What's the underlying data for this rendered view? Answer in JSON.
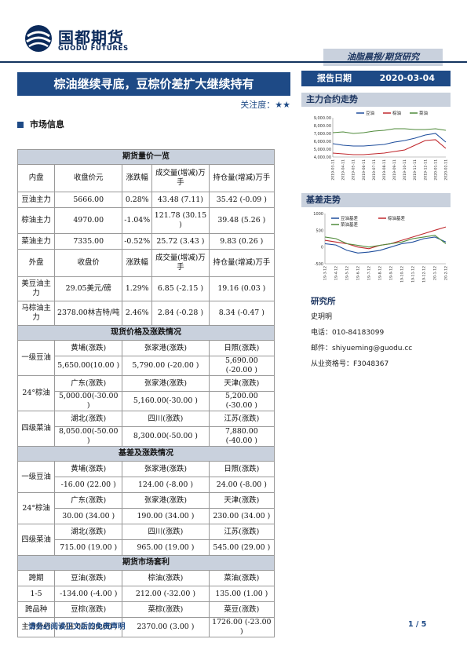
{
  "header": {
    "logo_cn": "国都期货",
    "logo_en": "GUODU FUTURES",
    "tag": "油脂晨报/期货研究",
    "title": "棕油继续寻底，豆棕价差扩大继续持有",
    "attention_label": "关注度：",
    "attention_stars": "★★",
    "section": "市场信息",
    "report_date_label": "报告日期",
    "report_date": "2020-03-04"
  },
  "colors": {
    "brand": "#1e4a86",
    "band": "#c9d1dd",
    "soy": "#1f4e9c",
    "palm": "#c0282d",
    "rapeseed": "#4f8a3a"
  },
  "futures": {
    "title": "期货量价一览",
    "head_inner": [
      "内盘",
      "收盘价元",
      "涨跌幅",
      "成交量(增减)万手",
      "持仓量(增减)万手"
    ],
    "inner_rows": [
      [
        "豆油主力",
        "5666.00",
        "0.28%",
        "43.48 (7.11)",
        "35.42 (-0.09 )"
      ],
      [
        "棕油主力",
        "4970.00",
        "-1.04%",
        "121.78 (30.15 )",
        "39.48 (5.26 )"
      ],
      [
        "菜油主力",
        "7335.00",
        "-0.52%",
        "25.72 (3.43 )",
        "9.83 (0.26 )"
      ]
    ],
    "head_outer": [
      "外盘",
      "收盘价",
      "涨跌幅",
      "成交量(增减)万手",
      "持仓量(增减)万手"
    ],
    "outer_rows": [
      [
        "美豆油主力",
        "29.05美元/磅",
        "1.29%",
        "6.85 (-2.15 )",
        "19.16 (0.03 )"
      ],
      [
        "马棕油主力",
        "2378.00林吉特/吨",
        "2.46%",
        "2.84 (-0.28 )",
        "8.34 (-0.47 )"
      ]
    ]
  },
  "spot": {
    "title": "现货价格及涨跌情况",
    "groups": [
      {
        "name": "一级豆油",
        "headers": [
          "黄埔(涨跌)",
          "张家港(涨跌)",
          "日照(涨跌)"
        ],
        "values": [
          "5,650.00(10.00 )",
          "5,790.00 (-20.00 )",
          "5,690.00 (-20.00 )"
        ]
      },
      {
        "name": "24°棕油",
        "headers": [
          "广东(涨跌)",
          "张家港(涨跌)",
          "天津(涨跌)"
        ],
        "values": [
          "5,000.00(-30.00 )",
          "5,160.00(-30.00 )",
          "5,200.00 (-30.00 )"
        ]
      },
      {
        "name": "四级菜油",
        "headers": [
          "湖北(涨跌)",
          "四川(涨跌)",
          "江苏(涨跌)"
        ],
        "values": [
          "8,050.00(-50.00 )",
          "8,300.00(-50.00 )",
          "7,880.00 (-40.00 )"
        ]
      }
    ]
  },
  "basis": {
    "title": "基差及涨跌情况",
    "groups": [
      {
        "name": "一级豆油",
        "headers": [
          "黄埔(涨跌)",
          "张家港(涨跌)",
          "日照(涨跌)"
        ],
        "values": [
          "-16.00 (22.00 )",
          "124.00 (-8.00 )",
          "24.00 (-8.00 )"
        ]
      },
      {
        "name": "24°棕油",
        "headers": [
          "广东(涨跌)",
          "张家港(涨跌)",
          "天津(涨跌)"
        ],
        "values": [
          "30.00 (34.00 )",
          "190.00 (34.00 )",
          "230.00 (34.00 )"
        ]
      },
      {
        "name": "四级菜油",
        "headers": [
          "湖北(涨跌)",
          "四川(涨跌)",
          "江苏(涨跌)"
        ],
        "values": [
          "715.00 (19.00 )",
          "965.00 (19.00 )",
          "545.00 (29.00 )"
        ]
      }
    ]
  },
  "arbitrage": {
    "title": "期货市场套利",
    "head1": [
      "跨期",
      "豆油(涨跌)",
      "棕油(涨跌)",
      "菜油(涨跌)"
    ],
    "row1": [
      "1-5",
      "-134.00 (-4.00 )",
      "212.00 (-32.00 )",
      "135.00 (1.00 )"
    ],
    "head2": [
      "跨品种",
      "豆棕(涨跌)",
      "菜棕(涨跌)",
      "菜豆(涨跌)"
    ],
    "row2": [
      "主力合约",
      "644.00 (26.00 )",
      "2370.00 (3.00 )",
      "1726.00 (-23.00 )"
    ]
  },
  "sidebar": {
    "chart1_title": "主力合约走势",
    "chart2_title": "基差走势",
    "research_title": "研究所",
    "researcher": "史玥明",
    "phone": "电话：010-84183099",
    "email": "邮件：shiyueming@guodu.cc",
    "license": "从业资格号：F3048367"
  },
  "chart_data": [
    {
      "type": "line",
      "title": "主力合约走势",
      "x": [
        "2019-03-11",
        "2019-04-11",
        "2019-05-11",
        "2019-06-11",
        "2019-07-11",
        "2019-08-11",
        "2019-09-11",
        "2019-10-11",
        "2019-11-11",
        "2019-12-11",
        "2020-01-11",
        "2020-02-11"
      ],
      "ylim": [
        4000,
        9000
      ],
      "yticks": [
        "4,000.00",
        "5,000.00",
        "6,000.00",
        "7,000.00",
        "8,000.00",
        "9,000.00"
      ],
      "series": [
        {
          "name": "豆油",
          "values": [
            5700,
            5500,
            5400,
            5400,
            5500,
            5600,
            5900,
            6100,
            6400,
            6800,
            7000,
            5900
          ]
        },
        {
          "name": "棕油",
          "values": [
            4500,
            4400,
            4300,
            4300,
            4400,
            4500,
            4700,
            4900,
            5500,
            6100,
            6200,
            5100
          ]
        },
        {
          "name": "菜油",
          "values": [
            7100,
            7200,
            7000,
            7100,
            7300,
            7400,
            7600,
            7600,
            7500,
            7500,
            7600,
            7400
          ]
        }
      ]
    },
    {
      "type": "line",
      "title": "基差走势",
      "x": [
        "19-3-12",
        "19-4-12",
        "19-5-12",
        "19-6-12",
        "19-7-12",
        "19-8-12",
        "19-9-12",
        "19-10-12",
        "19-11-12",
        "19-12-12",
        "20-1-12",
        "20-2-12"
      ],
      "ylim": [
        -500,
        1000
      ],
      "yticks": [
        "-500",
        "0",
        "500",
        "1000"
      ],
      "series": [
        {
          "name": "豆油基差",
          "values": [
            100,
            60,
            -100,
            -180,
            -150,
            -100,
            0,
            100,
            150,
            250,
            300,
            150
          ]
        },
        {
          "name": "棕油基差",
          "values": [
            200,
            150,
            100,
            0,
            -50,
            50,
            100,
            200,
            300,
            400,
            500,
            600
          ]
        },
        {
          "name": "菜油基差",
          "values": [
            300,
            250,
            100,
            50,
            0,
            50,
            100,
            150,
            250,
            300,
            350,
            100
          ]
        }
      ]
    }
  ],
  "footer": {
    "disclaimer": "请务必阅读正文后的免责声明",
    "page": "1 / 5"
  }
}
